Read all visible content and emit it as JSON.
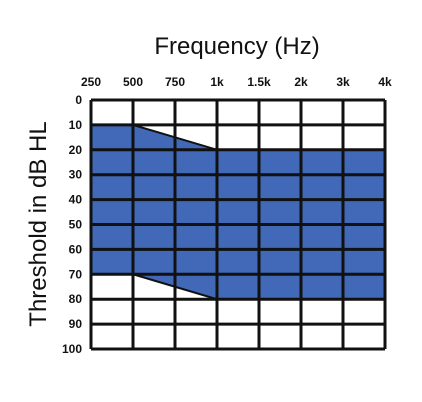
{
  "chart_data": {
    "type": "area",
    "title": "Frequency (Hz)",
    "ylabel": "Threshold in dB HL",
    "xlabel": "",
    "x_categories": [
      "250",
      "500",
      "750",
      "1k",
      "1.5k",
      "2k",
      "3k",
      "4k"
    ],
    "y_ticks": [
      "0",
      "10",
      "20",
      "30",
      "40",
      "50",
      "60",
      "70",
      "80",
      "90",
      "100"
    ],
    "ylim": [
      0,
      100
    ],
    "y_inverted": true,
    "grid": true,
    "fill_color": "#4169b8",
    "series": [
      {
        "upper_boundary_db": [
          10,
          10,
          15,
          20,
          20,
          20,
          20,
          20
        ],
        "lower_boundary_db": [
          70,
          70,
          75,
          80,
          80,
          80,
          80,
          80
        ]
      }
    ]
  }
}
